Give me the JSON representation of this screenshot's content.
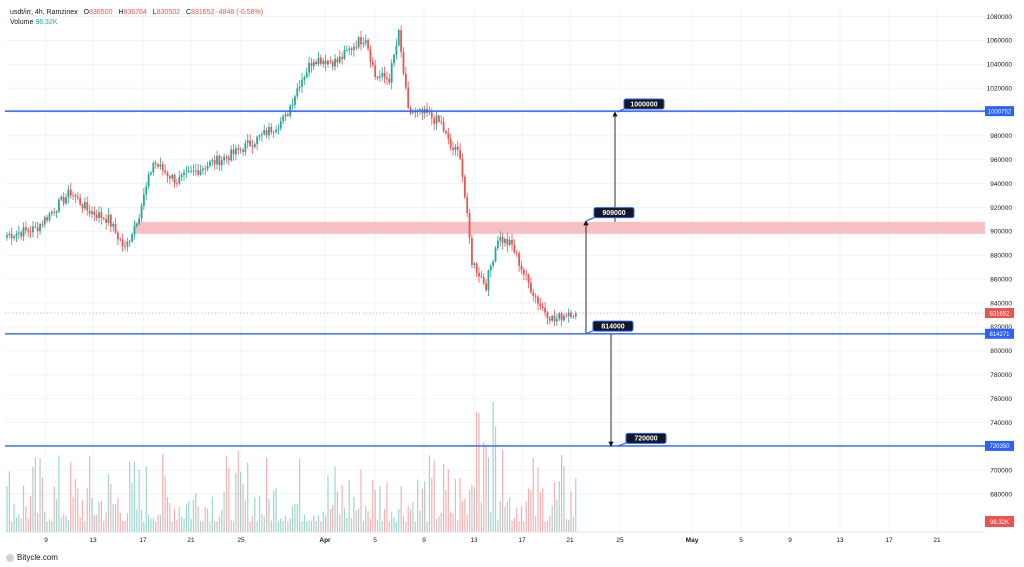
{
  "legend": {
    "symbol": "usdt/irr, 4h, Ramzinex",
    "open_label": "O",
    "open": "836500",
    "high_label": "H",
    "high": "836764",
    "low_label": "L",
    "low": "830502",
    "close_label": "C",
    "close": "831652",
    "change": "-4848 (-0.58%)",
    "volume_label": "Volume",
    "volume": "96.32K"
  },
  "watermark": "Bitycle.com",
  "chart_data": {
    "type": "candlestick",
    "interval": "4h",
    "x_ticks": [
      "9",
      "13",
      "17",
      "21",
      "25",
      "Apr",
      "5",
      "9",
      "13",
      "17",
      "21",
      "25",
      "May",
      "5",
      "9",
      "13",
      "17",
      "21"
    ],
    "y_ticks": [
      680000,
      700000,
      720000,
      740000,
      760000,
      780000,
      800000,
      820000,
      840000,
      860000,
      880000,
      900000,
      920000,
      940000,
      960000,
      980000,
      1000000,
      1020000,
      1040000,
      1060000,
      1080000
    ],
    "price_anchors": [
      {
        "bar": 0,
        "price": 897000
      },
      {
        "bar": 12,
        "price": 902000
      },
      {
        "bar": 27,
        "price": 933000
      },
      {
        "bar": 34,
        "price": 918000
      },
      {
        "bar": 43,
        "price": 910000
      },
      {
        "bar": 50,
        "price": 885000
      },
      {
        "bar": 56,
        "price": 915000
      },
      {
        "bar": 62,
        "price": 958000
      },
      {
        "bar": 72,
        "price": 942000
      },
      {
        "bar": 84,
        "price": 955000
      },
      {
        "bar": 96,
        "price": 965000
      },
      {
        "bar": 108,
        "price": 980000
      },
      {
        "bar": 118,
        "price": 995000
      },
      {
        "bar": 124,
        "price": 1025000
      },
      {
        "bar": 130,
        "price": 1045000
      },
      {
        "bar": 140,
        "price": 1042000
      },
      {
        "bar": 148,
        "price": 1058000
      },
      {
        "bar": 152,
        "price": 1063000
      },
      {
        "bar": 156,
        "price": 1030000
      },
      {
        "bar": 162,
        "price": 1028000
      },
      {
        "bar": 166,
        "price": 1065000
      },
      {
        "bar": 170,
        "price": 1000000
      },
      {
        "bar": 178,
        "price": 998000
      },
      {
        "bar": 184,
        "price": 990000
      },
      {
        "bar": 188,
        "price": 970000
      },
      {
        "bar": 192,
        "price": 965000
      },
      {
        "bar": 197,
        "price": 875000
      },
      {
        "bar": 203,
        "price": 855000
      },
      {
        "bar": 208,
        "price": 895000
      },
      {
        "bar": 214,
        "price": 888000
      },
      {
        "bar": 220,
        "price": 860000
      },
      {
        "bar": 226,
        "price": 838000
      },
      {
        "bar": 232,
        "price": 825000
      },
      {
        "bar": 238,
        "price": 833000
      },
      {
        "bar": 241,
        "price": 831652
      }
    ],
    "levels": [
      {
        "label": "1000752",
        "price": 1000752,
        "color": "#2962ff"
      },
      {
        "label": "814271",
        "price": 814271,
        "color": "#2962ff"
      },
      {
        "label": "720350",
        "price": 720350,
        "color": "#2962ff"
      }
    ],
    "current_price_label": "831652",
    "volume_axis_label": "96.32K",
    "zone": {
      "from": 898000,
      "to": 908000,
      "color": "#f7b8bd"
    },
    "targets": [
      {
        "label": "1000000",
        "price": 1000000
      },
      {
        "label": "909000",
        "price": 909000
      },
      {
        "label": "814000",
        "price": 814000
      },
      {
        "label": "720000",
        "price": 720000
      }
    ]
  }
}
